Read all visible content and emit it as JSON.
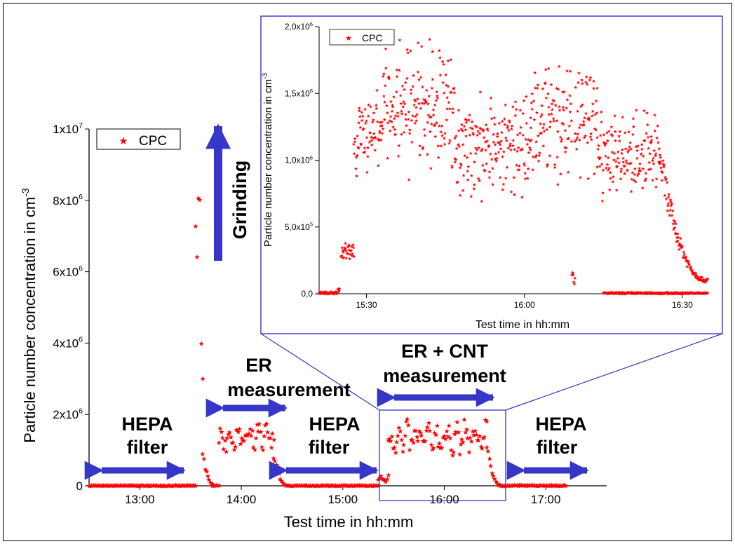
{
  "chart_data": [
    {
      "type": "scatter",
      "xlabel": "Test time in hh:mm",
      "ylabel": "Particle number concentration in cm",
      "ylabel_sup": "-3",
      "xlim": [
        12.5,
        17.6
      ],
      "ylim": [
        0,
        10000000
      ],
      "x_ticks": [
        {
          "v": 13,
          "label": "13:00"
        },
        {
          "v": 14,
          "label": "14:00"
        },
        {
          "v": 15,
          "label": "15:00"
        },
        {
          "v": 16,
          "label": "16:00"
        },
        {
          "v": 17,
          "label": "17:00"
        }
      ],
      "y_ticks": [
        {
          "v": 0,
          "base": "0",
          "sup": ""
        },
        {
          "v": 2000000,
          "base": "2x10",
          "sup": "6"
        },
        {
          "v": 4000000,
          "base": "4x10",
          "sup": "6"
        },
        {
          "v": 6000000,
          "base": "6x10",
          "sup": "6"
        },
        {
          "v": 8000000,
          "base": "8x10",
          "sup": "6"
        },
        {
          "v": 10000000,
          "base": "1x10",
          "sup": "7"
        }
      ],
      "legend": {
        "label": "CPC",
        "position": "top-left"
      },
      "series": [
        {
          "name": "CPC",
          "color": "#ff0000",
          "marker": "star",
          "segments": [
            {
              "x0": 12.5,
              "x1": 13.55,
              "lo": 0,
              "hi": 15000,
              "type": "flat"
            },
            {
              "x0": 13.55,
              "x1": 13.62,
              "lo": 300000,
              "hi": 10000000,
              "type": "spike"
            },
            {
              "x0": 13.62,
              "x1": 13.72,
              "lo": 50000,
              "hi": 900000,
              "type": "decay"
            },
            {
              "x0": 13.72,
              "x1": 13.78,
              "lo": 0,
              "hi": 30000,
              "type": "flat"
            },
            {
              "x0": 13.78,
              "x1": 14.32,
              "lo": 500000,
              "hi": 1950000,
              "type": "band"
            },
            {
              "x0": 14.32,
              "x1": 14.45,
              "lo": 10000,
              "hi": 900000,
              "type": "decay"
            },
            {
              "x0": 14.45,
              "x1": 15.35,
              "lo": 0,
              "hi": 15000,
              "type": "flat"
            },
            {
              "x0": 15.35,
              "x1": 15.45,
              "lo": 0,
              "hi": 350000,
              "type": "band"
            },
            {
              "x0": 15.45,
              "x1": 16.42,
              "lo": 500000,
              "hi": 1950000,
              "type": "band"
            },
            {
              "x0": 16.42,
              "x1": 16.55,
              "lo": 20000,
              "hi": 1200000,
              "type": "decay"
            },
            {
              "x0": 16.55,
              "x1": 17.2,
              "lo": 0,
              "hi": 20000,
              "type": "flat"
            }
          ]
        }
      ],
      "annotations": [
        {
          "lines": [
            "HEPA",
            "filter"
          ],
          "arrow": "horizontal"
        },
        {
          "lines": [
            "Grinding"
          ],
          "arrow": "vertical"
        },
        {
          "lines": [
            "ER",
            "measurement"
          ],
          "arrow": "horizontal"
        },
        {
          "lines": [
            "HEPA",
            "filter"
          ],
          "arrow": "horizontal"
        },
        {
          "lines": [
            "ER + CNT",
            "measurement"
          ],
          "arrow": "horizontal"
        },
        {
          "lines": [
            "HEPA",
            "filter"
          ],
          "arrow": "horizontal"
        }
      ],
      "zoom_box": {
        "x0": 15.33,
        "x1": 16.55,
        "y0": 0,
        "y1": 2000000
      }
    },
    {
      "type": "scatter",
      "xlabel": "Test time in hh:mm",
      "ylabel": "Particle number concentration in cm",
      "ylabel_sup": "-3",
      "xlim": [
        15.35,
        16.58
      ],
      "ylim": [
        0,
        2000000
      ],
      "x_ticks": [
        {
          "v": 15.5,
          "label": "15:30"
        },
        {
          "v": 16.0,
          "label": "16:00"
        },
        {
          "v": 16.5,
          "label": "16:30"
        }
      ],
      "y_ticks": [
        {
          "v": 0,
          "base": "0,0",
          "sup": ""
        },
        {
          "v": 500000,
          "base": "5,0x10",
          "sup": "5"
        },
        {
          "v": 1000000,
          "base": "1,0x10",
          "sup": "6"
        },
        {
          "v": 1500000,
          "base": "1,5x10",
          "sup": "6"
        },
        {
          "v": 2000000,
          "base": "2,0x10",
          "sup": "6"
        }
      ],
      "legend": {
        "label": "CPC",
        "position": "top-left"
      },
      "series": [
        {
          "name": "CPC",
          "color": "#ff0000",
          "marker": "star",
          "segments": [
            {
              "x0": 15.35,
              "x1": 15.41,
              "lo": 0,
              "hi": 15000,
              "type": "flat"
            },
            {
              "x0": 15.41,
              "x1": 15.415,
              "lo": 0,
              "hi": 50000,
              "type": "band"
            },
            {
              "x0": 15.42,
              "x1": 15.46,
              "lo": 180000,
              "hi": 420000,
              "type": "band"
            },
            {
              "x0": 15.46,
              "x1": 15.475,
              "lo": 700000,
              "hi": 1300000,
              "type": "band"
            },
            {
              "x0": 15.475,
              "x1": 15.55,
              "lo": 650000,
              "hi": 1650000,
              "type": "band"
            },
            {
              "x0": 15.55,
              "x1": 15.78,
              "lo": 650000,
              "hi": 1950000,
              "type": "band"
            },
            {
              "x0": 15.78,
              "x1": 16.02,
              "lo": 500000,
              "hi": 1550000,
              "type": "band"
            },
            {
              "x0": 16.02,
              "x1": 16.15,
              "lo": 550000,
              "hi": 1850000,
              "type": "band"
            },
            {
              "x0": 16.15,
              "x1": 16.16,
              "lo": 0,
              "hi": 210000,
              "type": "band"
            },
            {
              "x0": 16.16,
              "x1": 16.23,
              "lo": 500000,
              "hi": 1950000,
              "type": "band"
            },
            {
              "x0": 16.23,
              "x1": 16.43,
              "lo": 500000,
              "hi": 1450000,
              "type": "band"
            },
            {
              "x0": 16.43,
              "x1": 16.58,
              "lo": 100000,
              "hi": 900000,
              "type": "decay"
            },
            {
              "x0": 16.25,
              "x1": 16.58,
              "lo": 0,
              "hi": 10000,
              "type": "flat"
            }
          ]
        }
      ]
    }
  ]
}
